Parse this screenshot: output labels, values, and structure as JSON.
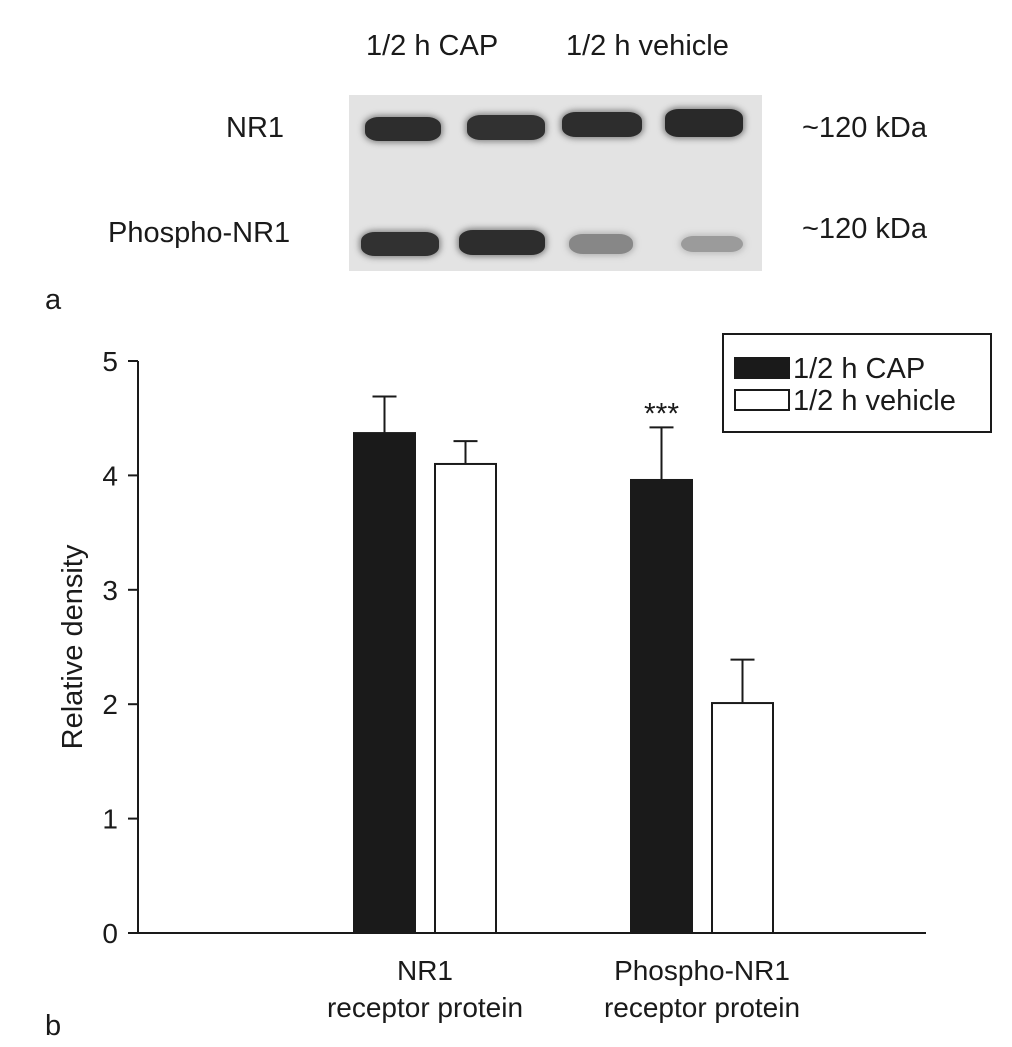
{
  "panel_a": {
    "panel_label": "a",
    "lane_headers": [
      "1/2 h CAP",
      "1/2 h vehicle"
    ],
    "rows": [
      {
        "label": "NR1",
        "size": "~120 kDa",
        "band_intensity": [
          0.9,
          0.88,
          0.9,
          0.92
        ]
      },
      {
        "label": "Phospho-NR1",
        "size": "~120 kDa",
        "band_intensity": [
          0.88,
          0.9,
          0.45,
          0.35
        ]
      }
    ]
  },
  "panel_b": {
    "panel_label": "b",
    "significance": "***"
  },
  "chart_data": {
    "type": "bar",
    "title": "",
    "ylabel": "Relative density",
    "xlabel": "",
    "ylim": [
      0,
      5
    ],
    "yticks": [
      0,
      1,
      2,
      3,
      4,
      5
    ],
    "categories": [
      "NR1\nreceptor protein",
      "Phospho-NR1\nreceptor protein"
    ],
    "series": [
      {
        "name": "1/2 h CAP",
        "values": [
          4.37,
          3.96
        ],
        "errors": [
          0.32,
          0.46
        ],
        "color": "#1a1a1a"
      },
      {
        "name": "1/2 h vehicle",
        "values": [
          4.1,
          2.01
        ],
        "errors": [
          0.2,
          0.38
        ],
        "color": "#ffffff"
      }
    ],
    "annotations": [
      {
        "category": 1,
        "series": 0,
        "text": "***"
      }
    ],
    "legend": "top-right",
    "grid": false
  }
}
